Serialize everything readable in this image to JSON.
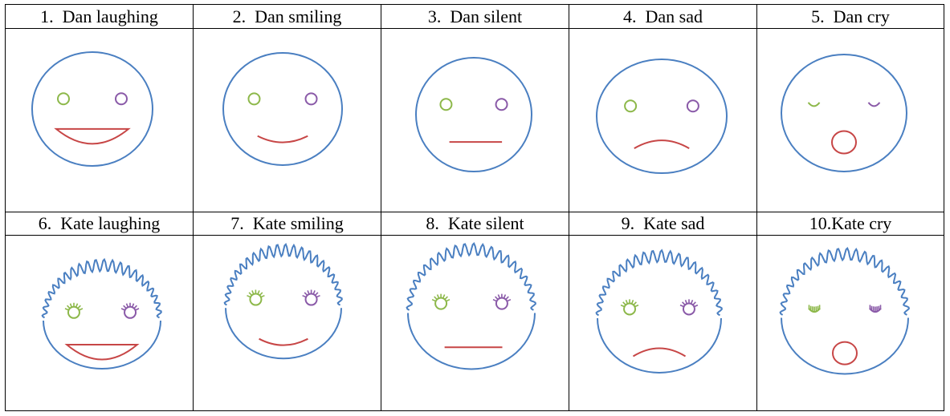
{
  "colors": {
    "outline": "#4a7fc1",
    "left_eye": "#8db84a",
    "right_eye": "#8a5aa8",
    "mouth": "#c74646",
    "grid_line": "#000000"
  },
  "rows": [
    {
      "person": "Dan",
      "cells": [
        {
          "label": "1.  Dan laughing",
          "expression": "laughing"
        },
        {
          "label": "2.  Dan smiling",
          "expression": "smiling"
        },
        {
          "label": "3.  Dan silent",
          "expression": "silent"
        },
        {
          "label": "4.  Dan sad",
          "expression": "sad"
        },
        {
          "label": "5.  Dan cry",
          "expression": "cry"
        }
      ]
    },
    {
      "person": "Kate",
      "cells": [
        {
          "label": "6.  Kate laughing",
          "expression": "laughing"
        },
        {
          "label": "7.  Kate smiling",
          "expression": "smiling"
        },
        {
          "label": "8.  Kate silent",
          "expression": "silent"
        },
        {
          "label": "9.  Kate sad",
          "expression": "sad"
        },
        {
          "label": "10.Kate cry",
          "expression": "cry"
        }
      ]
    }
  ]
}
